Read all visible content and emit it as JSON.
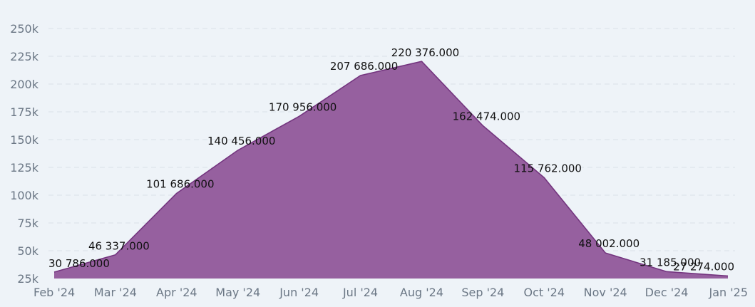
{
  "colors": {
    "background": "#eef3f8",
    "area_fill": "#96609f",
    "area_stroke": "#74357f",
    "grid": "#d9e0e8",
    "tick_text": "#6b7785",
    "label_text": "#111111"
  },
  "chart_data": {
    "type": "area",
    "title": "",
    "xlabel": "",
    "ylabel": "",
    "grid": true,
    "legend": "none",
    "ylim": [
      25000,
      250000
    ],
    "yticks": [
      25000,
      50000,
      75000,
      100000,
      125000,
      150000,
      175000,
      200000,
      225000,
      250000
    ],
    "ytick_labels": [
      "25k",
      "50k",
      "75k",
      "100k",
      "125k",
      "150k",
      "175k",
      "200k",
      "225k",
      "250k"
    ],
    "categories": [
      "Feb '24",
      "Mar '24",
      "Apr '24",
      "May '24",
      "Jun '24",
      "Jul '24",
      "Aug '24",
      "Sep '24",
      "Oct '24",
      "Nov '24",
      "Dec '24",
      "Jan '25"
    ],
    "values": [
      30786,
      46337,
      101686,
      140456,
      170956,
      207686,
      220376,
      162474,
      115762,
      48002,
      31185,
      27274
    ],
    "data_labels": [
      "30 786.000",
      "46 337.000",
      "101 686.000",
      "140 456.000",
      "170 956.000",
      "207 686.000",
      "220 376.000",
      "162 474.000",
      "115 762.000",
      "48 002.000",
      "31 185.000",
      "27 274.000"
    ]
  }
}
